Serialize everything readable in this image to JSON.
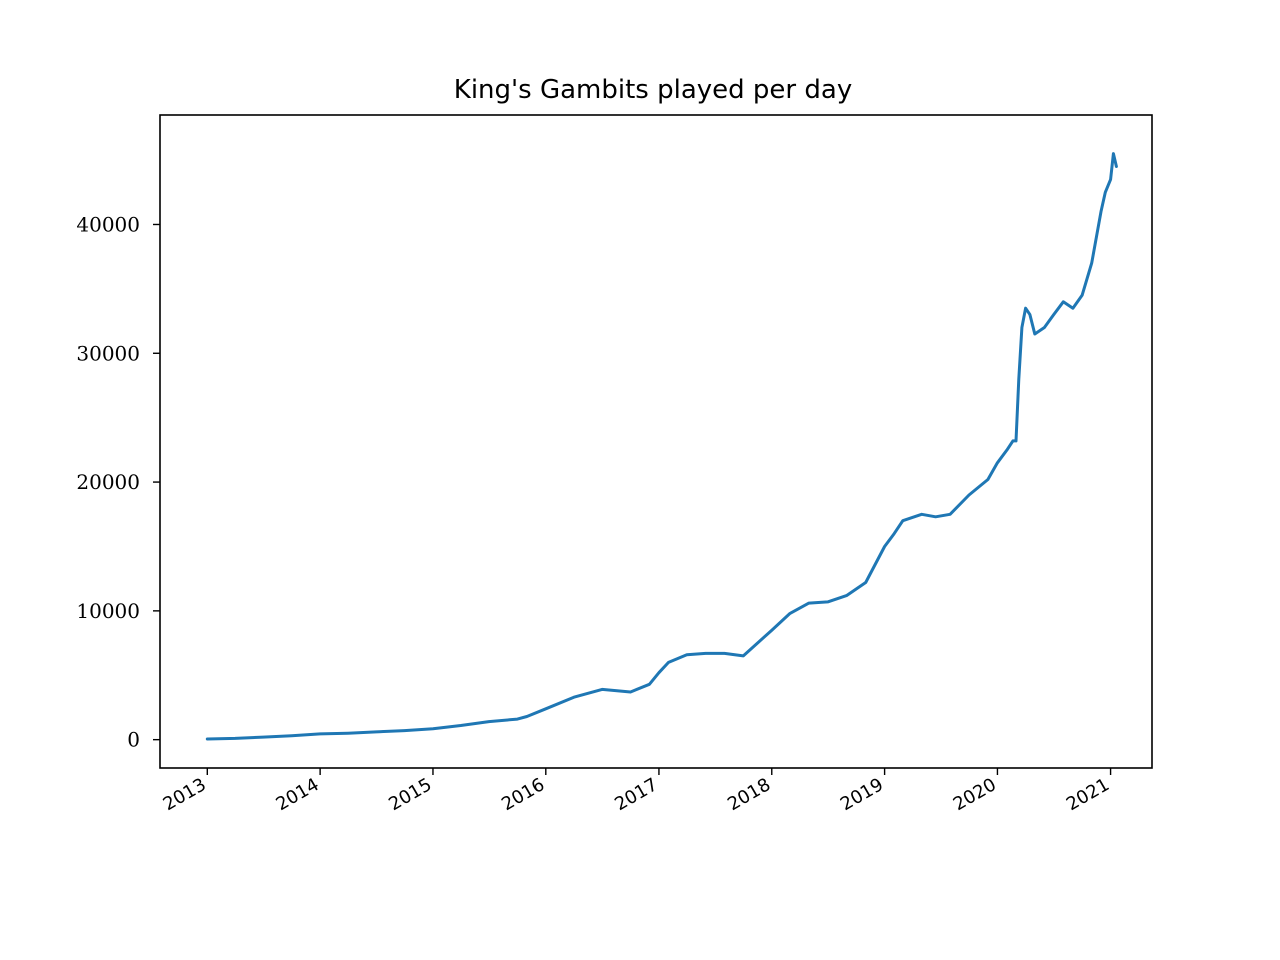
{
  "chart_data": {
    "type": "line",
    "title": "King's Gambits played per day",
    "xlabel": "",
    "ylabel": "",
    "x_type": "date",
    "xlim": [
      "2012-08-01",
      "2021-05-15"
    ],
    "ylim": [
      -2200,
      48500
    ],
    "xticks": [
      "2013-01-01",
      "2014-01-01",
      "2015-01-01",
      "2016-01-01",
      "2017-01-01",
      "2018-01-01",
      "2019-01-01",
      "2020-01-01",
      "2021-01-01"
    ],
    "xtick_labels": [
      "2013",
      "2014",
      "2015",
      "2016",
      "2017",
      "2018",
      "2019",
      "2020",
      "2021"
    ],
    "yticks": [
      0,
      10000,
      20000,
      30000,
      40000
    ],
    "ytick_labels": [
      "0",
      "10000",
      "20000",
      "30000",
      "40000"
    ],
    "grid": false,
    "legend": "none",
    "color": "#1f77b4",
    "series": [
      {
        "x": [
          "2013-01-01",
          "2013-04-01",
          "2013-07-01",
          "2013-10-01",
          "2014-01-01",
          "2014-04-01",
          "2014-07-01",
          "2014-10-01",
          "2015-01-01",
          "2015-04-01",
          "2015-07-01",
          "2015-10-01",
          "2015-11-01",
          "2016-01-01",
          "2016-04-01",
          "2016-07-01",
          "2016-10-01",
          "2016-12-01",
          "2017-01-01",
          "2017-02-01",
          "2017-04-01",
          "2017-06-01",
          "2017-08-01",
          "2017-10-01",
          "2018-01-01",
          "2018-03-01",
          "2018-05-01",
          "2018-07-01",
          "2018-09-01",
          "2018-11-01",
          "2019-01-01",
          "2019-02-01",
          "2019-03-01",
          "2019-05-01",
          "2019-06-15",
          "2019-08-01",
          "2019-10-01",
          "2019-12-01",
          "2020-01-01",
          "2020-02-01",
          "2020-02-20",
          "2020-03-01",
          "2020-03-10",
          "2020-03-20",
          "2020-04-01",
          "2020-04-15",
          "2020-05-01",
          "2020-06-01",
          "2020-07-01",
          "2020-08-01",
          "2020-09-01",
          "2020-10-01",
          "2020-11-01",
          "2020-12-01",
          "2020-12-15",
          "2021-01-01",
          "2021-01-10",
          "2021-01-20"
        ],
        "y": [
          50,
          100,
          200,
          300,
          450,
          500,
          600,
          700,
          850,
          1100,
          1400,
          1600,
          1800,
          2400,
          3300,
          3900,
          3700,
          4300,
          5200,
          6000,
          6600,
          6700,
          6700,
          6500,
          8500,
          9800,
          10600,
          10700,
          11200,
          12200,
          15000,
          16000,
          17000,
          17500,
          17300,
          17500,
          19000,
          20200,
          21500,
          22500,
          23200,
          23200,
          28000,
          32000,
          33500,
          33000,
          31500,
          32000,
          33000,
          34000,
          33500,
          34500,
          37000,
          41000,
          42500,
          43500,
          45500,
          44500
        ]
      }
    ]
  }
}
